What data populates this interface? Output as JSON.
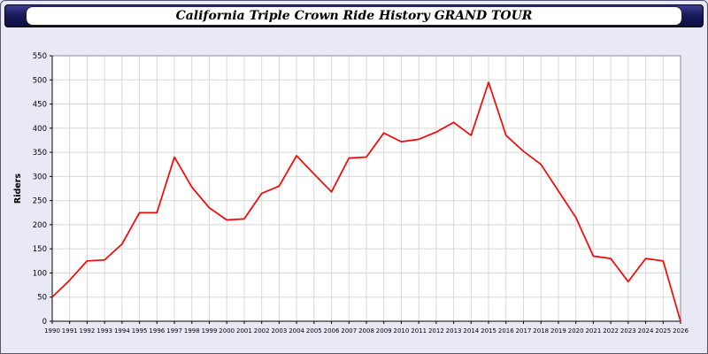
{
  "header": {
    "title": "California Triple Crown Ride History GRAND TOUR"
  },
  "chart_data": {
    "type": "line",
    "title": "California Triple Crown Ride History GRAND TOUR",
    "xlabel": "",
    "ylabel": "Riders",
    "ylim": [
      0,
      550
    ],
    "ytick_step": 50,
    "grid": true,
    "legend": "none",
    "line_color": "#ff0000",
    "categories": [
      1990,
      1991,
      1992,
      1993,
      1994,
      1995,
      1996,
      1997,
      1998,
      1999,
      2000,
      2001,
      2002,
      2003,
      2004,
      2005,
      2006,
      2007,
      2008,
      2009,
      2010,
      2011,
      2012,
      2013,
      2014,
      2015,
      2016,
      2017,
      2018,
      2019,
      2020,
      2021,
      2022,
      2023,
      2024,
      2025,
      2026
    ],
    "values": [
      50,
      85,
      125,
      127,
      160,
      225,
      225,
      340,
      278,
      235,
      210,
      212,
      265,
      280,
      343,
      305,
      268,
      338,
      340,
      390,
      372,
      377,
      392,
      412,
      385,
      495,
      385,
      352,
      325,
      270,
      215,
      135,
      130,
      82,
      130,
      125,
      0
    ]
  }
}
